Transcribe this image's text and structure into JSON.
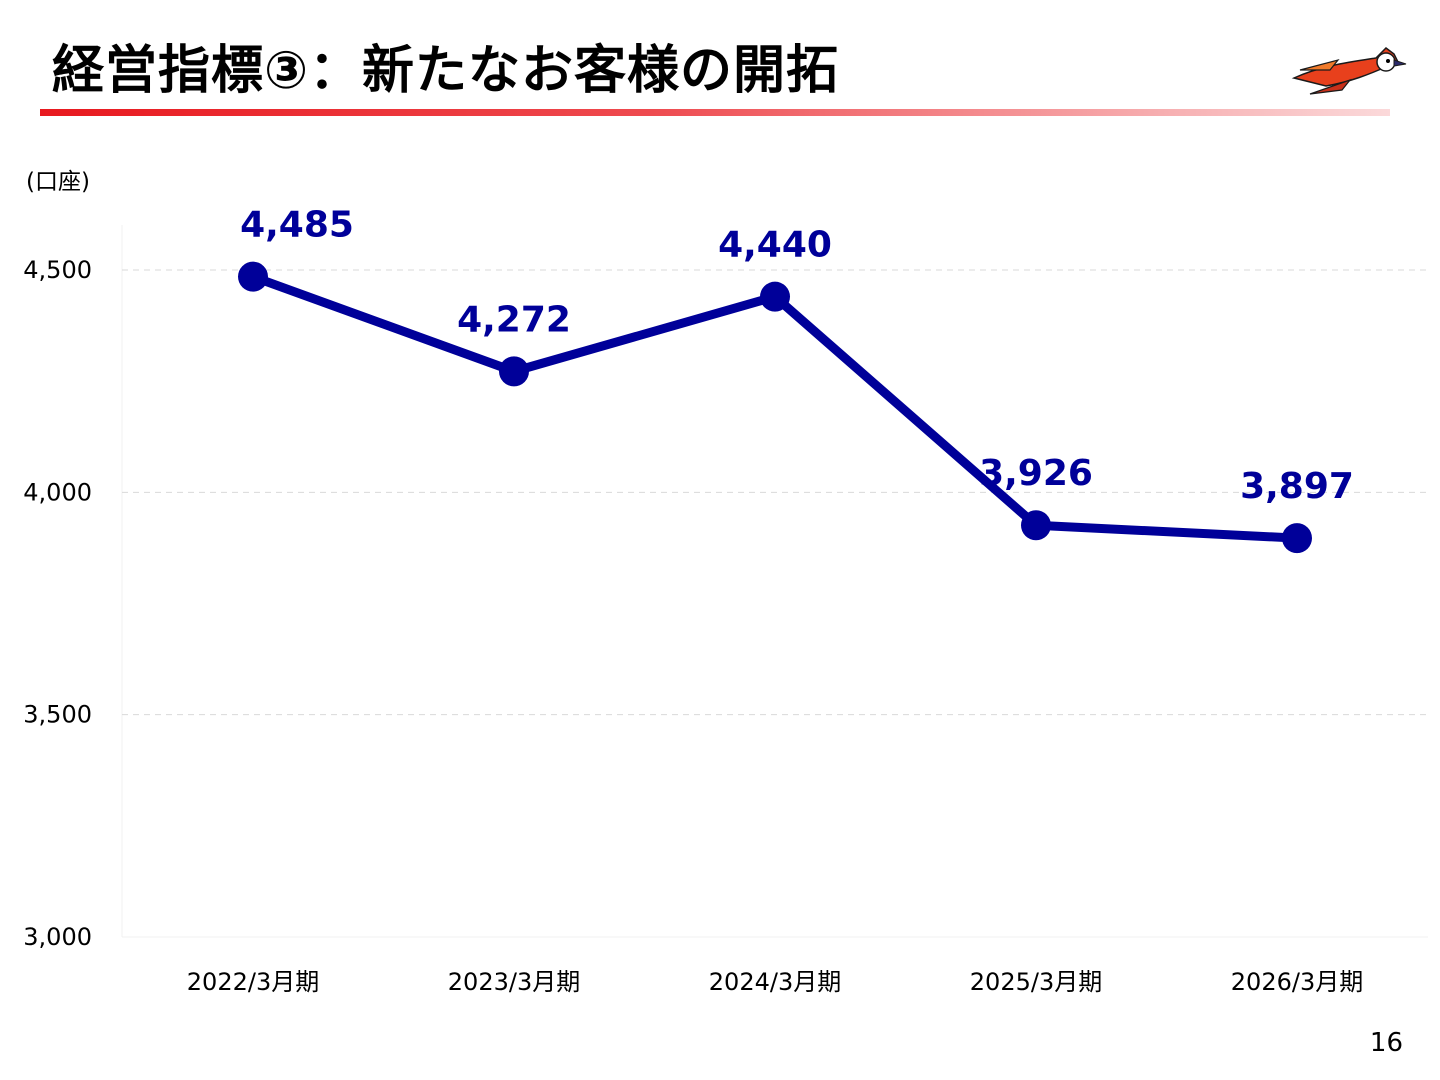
{
  "slide": {
    "title": "経営指標③：新たなお客様の開拓",
    "unit": "(口座)",
    "page_number": "16"
  },
  "colors": {
    "series": "#000099",
    "title_bar_start": "#e8191f",
    "axis_text": "#000000",
    "gridline": "#d9d9d9"
  },
  "logo": {
    "icon": "bird-logo-icon"
  },
  "chart_data": {
    "type": "line",
    "categories": [
      "2022/3月期",
      "2023/3月期",
      "2024/3月期",
      "2025/3月期",
      "2026/3月期"
    ],
    "series": [
      {
        "values": [
          4485,
          4272,
          4440,
          3926,
          3897
        ],
        "labels": [
          "4,485",
          "4,272",
          "4,440",
          "3,926",
          "3,897"
        ]
      }
    ],
    "ylim": [
      3000,
      4500
    ],
    "yticks": [
      3000,
      3500,
      4000,
      4500
    ],
    "ytick_labels": [
      "3,000",
      "3,500",
      "4,000",
      "4,500"
    ],
    "ylabel": "(口座)",
    "grid": true,
    "data_labels": true
  }
}
